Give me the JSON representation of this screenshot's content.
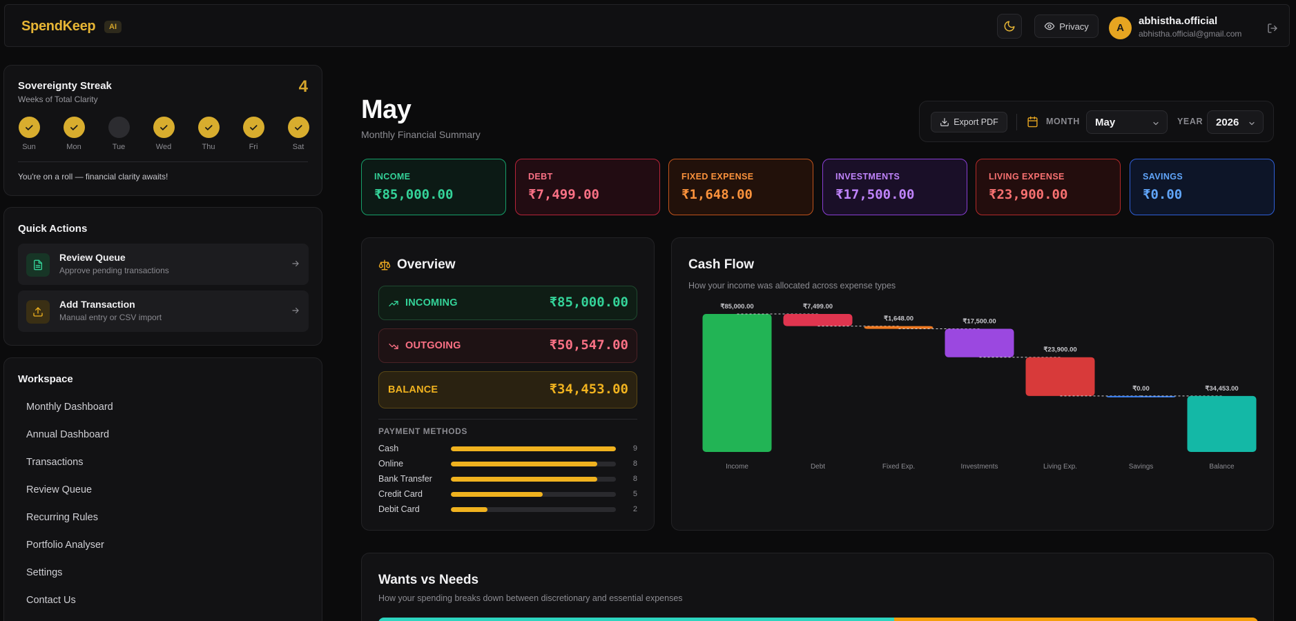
{
  "app": {
    "brand": "SpendKeep",
    "badge": "AI"
  },
  "header": {
    "privacy_label": "Privacy",
    "user": {
      "initial": "A",
      "name": "abhistha.official",
      "email": "abhistha.official@gmail.com"
    }
  },
  "streak": {
    "title": "Sovereignty Streak",
    "subtitle": "Weeks of Total Clarity",
    "count": "4",
    "days": [
      {
        "label": "Sun",
        "done": true
      },
      {
        "label": "Mon",
        "done": true
      },
      {
        "label": "Tue",
        "done": false
      },
      {
        "label": "Wed",
        "done": true
      },
      {
        "label": "Thu",
        "done": true
      },
      {
        "label": "Fri",
        "done": true
      },
      {
        "label": "Sat",
        "done": true
      }
    ],
    "message": "You're on a roll — financial clarity awaits!"
  },
  "quick_actions": {
    "title": "Quick Actions",
    "items": [
      {
        "title": "Review Queue",
        "subtitle": "Approve pending transactions",
        "icon": "document-icon"
      },
      {
        "title": "Add Transaction",
        "subtitle": "Manual entry or CSV import",
        "icon": "upload-icon"
      }
    ]
  },
  "workspace": {
    "title": "Workspace",
    "items": [
      "Monthly Dashboard",
      "Annual Dashboard",
      "Transactions",
      "Review Queue",
      "Recurring Rules",
      "Portfolio Analyser",
      "Settings",
      "Contact Us"
    ]
  },
  "main": {
    "title": "May",
    "subtitle": "Monthly Financial Summary",
    "export_label": "Export PDF",
    "month_label": "MONTH",
    "month_value": "May",
    "year_label": "YEAR",
    "year_value": "2026"
  },
  "stats": [
    {
      "label": "INCOME",
      "value": "₹85,000.00",
      "color": "#34d399",
      "border": "#16a06a",
      "bg": "#0c1a15"
    },
    {
      "label": "DEBT",
      "value": "₹7,499.00",
      "color": "#fb7185",
      "border": "#b8243a",
      "bg": "#220c12"
    },
    {
      "label": "FIXED EXPENSE",
      "value": "₹1,648.00",
      "color": "#fb923c",
      "border": "#c2541c",
      "bg": "#22110a"
    },
    {
      "label": "INVESTMENTS",
      "value": "₹17,500.00",
      "color": "#c084fc",
      "border": "#8a3fd6",
      "bg": "#1a0f28"
    },
    {
      "label": "LIVING EXPENSE",
      "value": "₹23,900.00",
      "color": "#f87171",
      "border": "#b42a2a",
      "bg": "#230d0d"
    },
    {
      "label": "SAVINGS",
      "value": "₹0.00",
      "color": "#60a5fa",
      "border": "#2f5fd8",
      "bg": "#0d1528"
    }
  ],
  "overview": {
    "title": "Overview",
    "incoming": {
      "label": "INCOMING",
      "value": "₹85,000.00"
    },
    "outgoing": {
      "label": "OUTGOING",
      "value": "₹50,547.00"
    },
    "balance": {
      "label": "BALANCE",
      "value": "₹34,453.00"
    },
    "payment_methods_title": "PAYMENT METHODS",
    "payment_methods": [
      {
        "name": "Cash",
        "count": 9
      },
      {
        "name": "Online",
        "count": 8
      },
      {
        "name": "Bank Transfer",
        "count": 8
      },
      {
        "name": "Credit Card",
        "count": 5
      },
      {
        "name": "Debit Card",
        "count": 2
      }
    ]
  },
  "cashflow": {
    "title": "Cash Flow",
    "subtitle": "How your income was allocated across expense types"
  },
  "chart_data": {
    "type": "bar",
    "subtype": "waterfall",
    "categories": [
      "Income",
      "Debt",
      "Fixed Exp.",
      "Investments",
      "Living Exp.",
      "Savings",
      "Balance"
    ],
    "values": [
      85000,
      7499,
      1648,
      17500,
      23900,
      0,
      34453
    ],
    "data_labels": [
      "₹85,000.00",
      "₹7,499.00",
      "₹1,648.00",
      "₹17,500.00",
      "₹23,900.00",
      "₹0.00",
      "₹34,453.00"
    ],
    "colors": [
      "#22b455",
      "#e0354f",
      "#f07a22",
      "#9b48e0",
      "#d83a3a",
      "#3b82f6",
      "#14b8a6"
    ],
    "grid": false
  },
  "wants": {
    "title": "Wants vs Needs",
    "subtitle": "How your spending breaks down between discretionary and essential expenses",
    "bar": [
      {
        "share": 0.586,
        "color": "#2dd4bf"
      },
      {
        "share": 0.414,
        "color": "#f59e0b"
      }
    ]
  }
}
